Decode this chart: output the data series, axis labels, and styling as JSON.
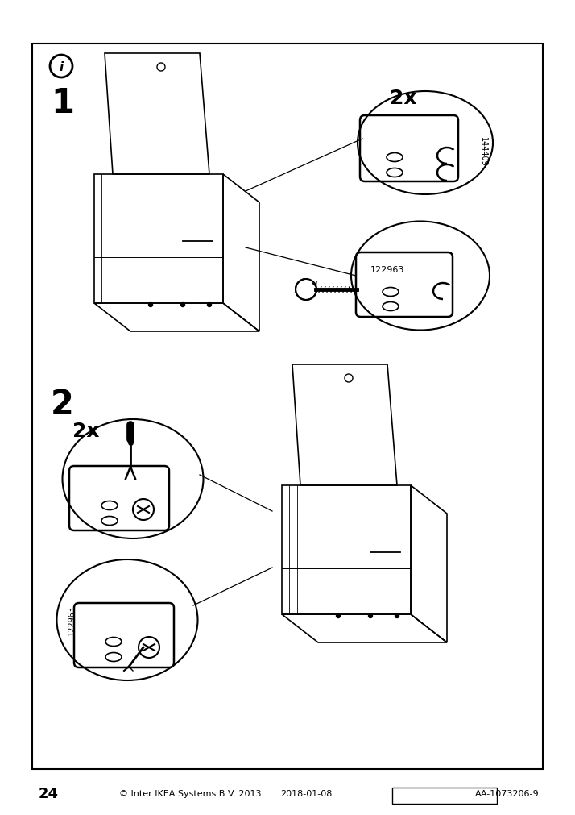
{
  "page_num": "24",
  "copyright_text": "© Inter IKEA Systems B.V. 2013",
  "date_text": "2018-01-08",
  "product_code": "AA-1073206-9",
  "background_color": "#ffffff",
  "border_color": "#000000",
  "text_color": "#000000",
  "step1_label": "1",
  "step2_label": "2",
  "info_symbol": "i",
  "quantity_top": "2x",
  "quantity_bottom": "2x",
  "part_number_top": "144409",
  "part_number_bottom": "122963",
  "part_number_screw": "122963"
}
